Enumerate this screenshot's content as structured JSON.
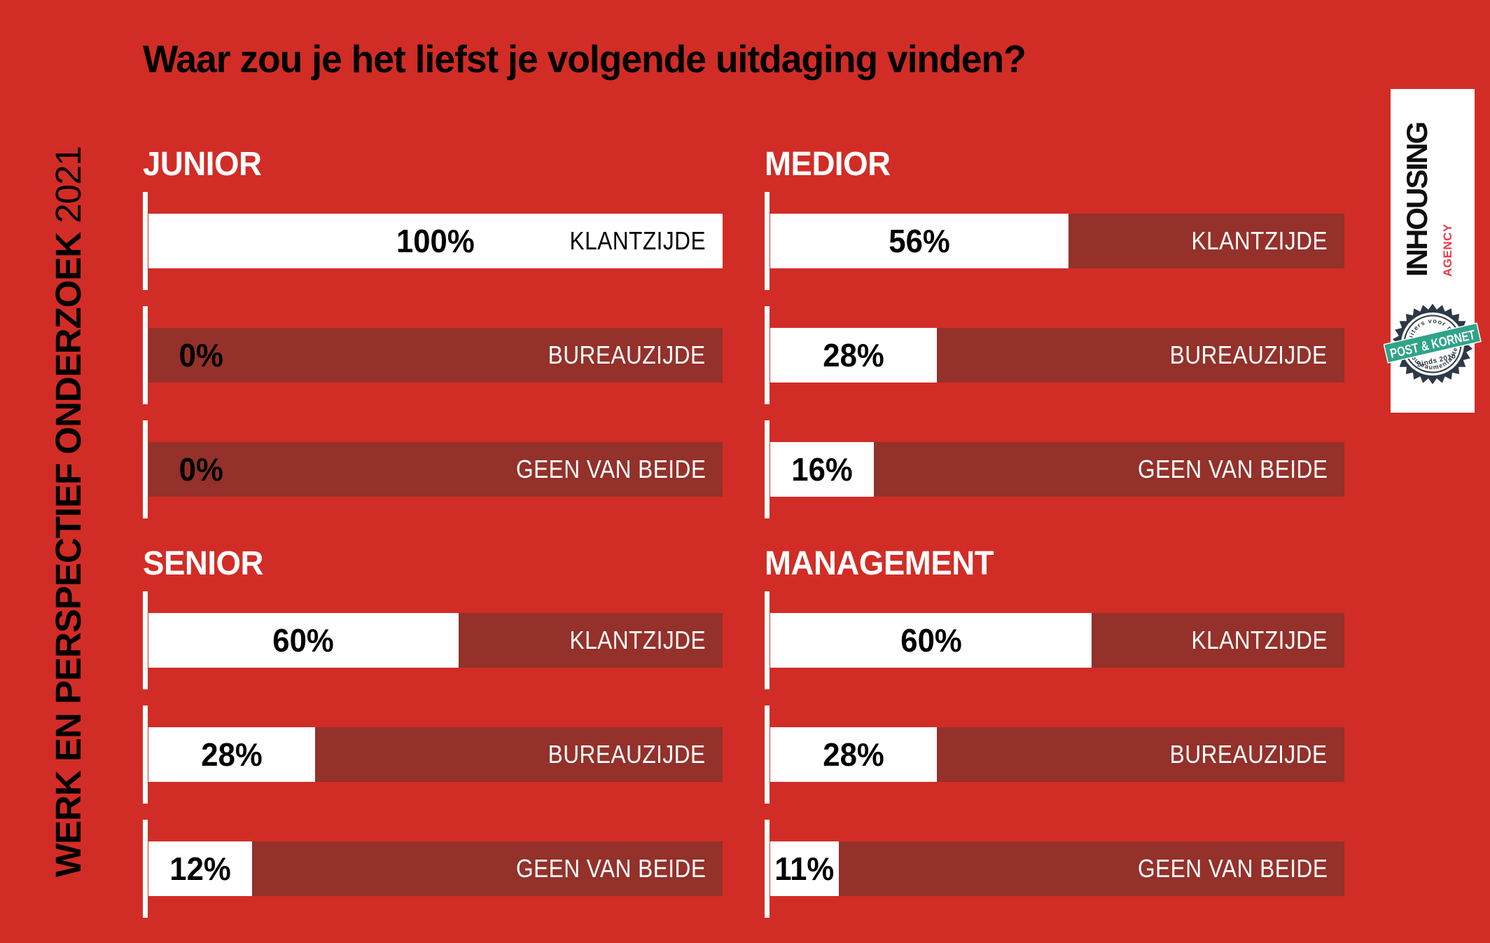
{
  "title": "Waar zou je het liefst je volgende uitdaging vinden?",
  "sidebar": {
    "label_bold": "WERK EN PERSPECTIEF ONDERZOEK",
    "label_year": "2021"
  },
  "logo": {
    "name": "INHOUSING",
    "sub": "AGENCY"
  },
  "badge": {
    "arc_top": "recruiters voor mensen",
    "banner": "POST & KORNET",
    "since": "Sinds 2010",
    "arc_bottom": "met bureaumentaliteit"
  },
  "colors": {
    "background": "#d22c26",
    "bar_track": "#93312a",
    "bar_fill": "#ffffff",
    "value_text": "#000000",
    "heading_text": "#ffffff",
    "badge_navy": "#2e3946",
    "badge_green": "#2ea489",
    "agency_red": "#e8394c"
  },
  "chart_data": {
    "type": "bar",
    "orientation": "horizontal",
    "title": "Waar zou je het liefst je volgende uitdaging vinden?",
    "unit": "%",
    "xlim": [
      0,
      100
    ],
    "grid": false,
    "legend": false,
    "categories": [
      "KLANTZIJDE",
      "BUREAUZIJDE",
      "GEEN VAN BEIDE"
    ],
    "groups": [
      {
        "label": "JUNIOR",
        "bars": [
          {
            "category": "KLANTZIJDE",
            "value": 100,
            "display": "100%",
            "fill_pct": 100
          },
          {
            "category": "BUREAUZIJDE",
            "value": 0,
            "display": "0%",
            "fill_pct": 0
          },
          {
            "category": "GEEN VAN BEIDE",
            "value": 0,
            "display": "0%",
            "fill_pct": 0
          }
        ]
      },
      {
        "label": "MEDIOR",
        "bars": [
          {
            "category": "KLANTZIJDE",
            "value": 56,
            "display": "56%",
            "fill_pct": 52
          },
          {
            "category": "BUREAUZIJDE",
            "value": 28,
            "display": "28%",
            "fill_pct": 29
          },
          {
            "category": "GEEN VAN BEIDE",
            "value": 16,
            "display": "16%",
            "fill_pct": 18
          }
        ]
      },
      {
        "label": "SENIOR",
        "bars": [
          {
            "category": "KLANTZIJDE",
            "value": 60,
            "display": "60%",
            "fill_pct": 54
          },
          {
            "category": "BUREAUZIJDE",
            "value": 28,
            "display": "28%",
            "fill_pct": 29
          },
          {
            "category": "GEEN VAN BEIDE",
            "value": 12,
            "display": "12%",
            "fill_pct": 18
          }
        ]
      },
      {
        "label": "MANAGEMENT",
        "bars": [
          {
            "category": "KLANTZIJDE",
            "value": 60,
            "display": "60%",
            "fill_pct": 56
          },
          {
            "category": "BUREAUZIJDE",
            "value": 28,
            "display": "28%",
            "fill_pct": 29
          },
          {
            "category": "GEEN VAN BEIDE",
            "value": 11,
            "display": "11%",
            "fill_pct": 12
          }
        ]
      }
    ]
  }
}
